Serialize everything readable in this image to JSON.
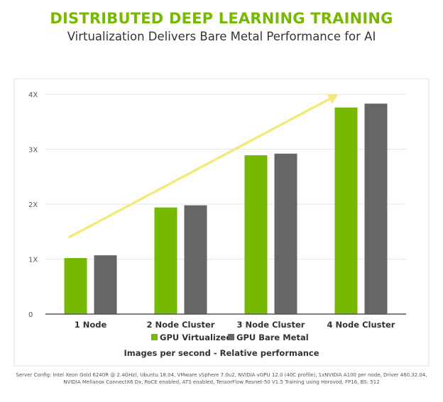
{
  "title": "DISTRIBUTED DEEP LEARNING TRAINING",
  "subtitle": "Virtualization Delivers Bare Metal Performance for AI",
  "colors": {
    "accent_green": "#76b900",
    "bare_metal_gray": "#666666",
    "arrow_yellow": "#f2ea7a",
    "text": "#333333"
  },
  "chart_data": {
    "type": "bar",
    "categories": [
      "1 Node",
      "2 Node Cluster",
      "3 Node Cluster",
      "4 Node Cluster"
    ],
    "series": [
      {
        "name": "GPU Virtualized",
        "values": [
          1.02,
          1.94,
          2.89,
          3.76
        ]
      },
      {
        "name": "GPU Bare Metal",
        "values": [
          1.07,
          1.98,
          2.92,
          3.83
        ]
      }
    ],
    "ylim": [
      0,
      4
    ],
    "yticks": [
      0,
      1,
      2,
      3,
      4
    ],
    "ytick_labels": [
      "0",
      "1X",
      "2X",
      "3X",
      "4X"
    ],
    "xlabel": "Images per second - Relative performance",
    "ylabel": "",
    "grid": true,
    "legend_position": "bottom",
    "annotation": "upward trend arrow"
  },
  "footnote": {
    "line1": "Server Config: Intel Xeon Gold 6240R @ 2.4GHz), Ubuntu 18.04, VMware vSphere 7.0u2, NVIDIA vGPU 12.0 (40C profile), 1xNVIDIA A100 per node, Driver 460.32.04,",
    "line2": "NVIDIA Mellanox ConnectX6 Dx, RoCE enabled, ATS enabled, TensorFlow Resnet-50 V1.5 Training using Horovod, FP16, BS: 512"
  }
}
